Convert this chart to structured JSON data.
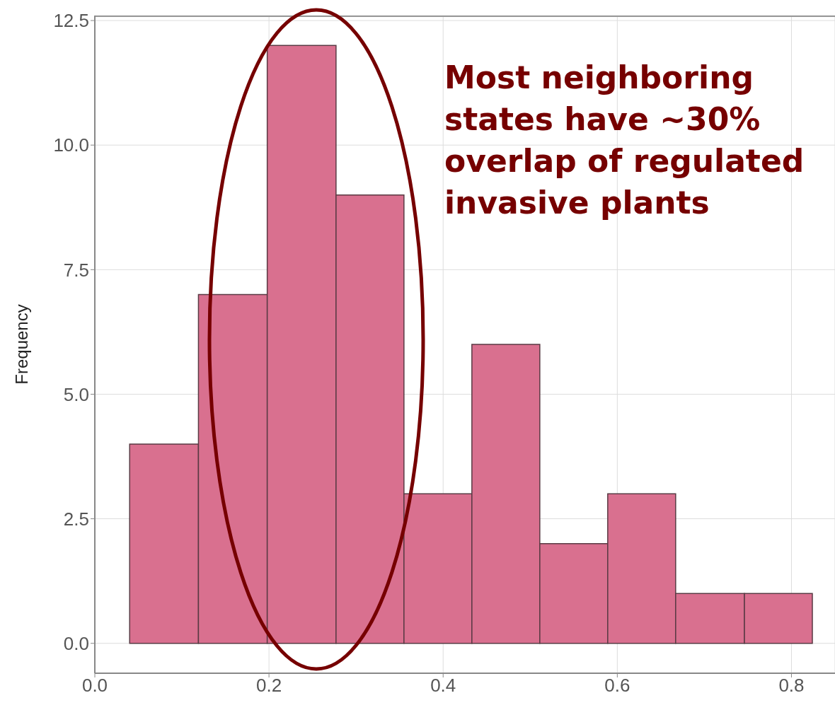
{
  "chart_data": {
    "type": "histogram",
    "ylabel": "Frequency",
    "bins": [
      0.04,
      0.119,
      0.198,
      0.277,
      0.355,
      0.433,
      0.511,
      0.589,
      0.667,
      0.746,
      0.824
    ],
    "values": [
      4,
      7,
      12,
      9,
      3,
      6,
      2,
      3,
      1,
      1
    ],
    "color": "#d9708f",
    "xlim": [
      0,
      0.85
    ],
    "xticks": [
      {
        "value": 0,
        "label": "0.0"
      },
      0.2,
      0.4,
      0.6,
      0.8
    ],
    "ylim": [
      -0.6,
      12.6
    ],
    "yticks": [
      {
        "value": 0,
        "label": "0.0"
      },
      2.5,
      {
        "value": 5,
        "label": "5.0"
      },
      7.5,
      {
        "value": 10,
        "label": "10.0"
      },
      12.5
    ],
    "grid": true,
    "annotations": [
      "Most neighboring states have ~30% overlap of regulated invasive plants"
    ]
  }
}
